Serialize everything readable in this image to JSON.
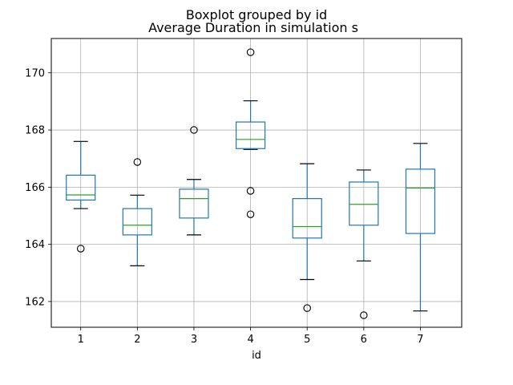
{
  "chart_data": {
    "type": "boxplot",
    "suptitle": "Boxplot grouped by id",
    "title": "Average Duration in simulation s",
    "xlabel": "id",
    "ylabel": "",
    "categories": [
      "1",
      "2",
      "3",
      "4",
      "5",
      "6",
      "7"
    ],
    "ylim": [
      161.1,
      171.2
    ],
    "yticks": [
      162,
      164,
      166,
      168,
      170
    ],
    "grid": true,
    "colors": {
      "box": "#1f77b4",
      "median": "#2ca02c",
      "whisker_cap": "#000000",
      "flier": "#000000",
      "grid": "#b0b0b0"
    },
    "boxes": [
      {
        "label": "1",
        "whislo": 165.25,
        "q1": 165.55,
        "med": 165.73,
        "q3": 166.42,
        "whishi": 167.6,
        "fliers": [
          163.85
        ]
      },
      {
        "label": "2",
        "whislo": 163.25,
        "q1": 164.33,
        "med": 164.67,
        "q3": 165.25,
        "whishi": 165.72,
        "fliers": [
          166.88
        ]
      },
      {
        "label": "3",
        "whislo": 164.33,
        "q1": 164.92,
        "med": 165.6,
        "q3": 165.93,
        "whishi": 166.27,
        "fliers": [
          168.0
        ]
      },
      {
        "label": "4",
        "whislo": 167.32,
        "q1": 167.35,
        "med": 167.67,
        "q3": 168.28,
        "whishi": 169.02,
        "fliers": [
          170.72,
          165.87,
          165.05
        ]
      },
      {
        "label": "5",
        "whislo": 162.77,
        "q1": 164.22,
        "med": 164.62,
        "q3": 165.6,
        "whishi": 166.82,
        "fliers": [
          161.77
        ]
      },
      {
        "label": "6",
        "whislo": 163.42,
        "q1": 164.67,
        "med": 165.4,
        "q3": 166.18,
        "whishi": 166.6,
        "fliers": [
          161.52
        ]
      },
      {
        "label": "7",
        "whislo": 161.67,
        "q1": 164.38,
        "med": 165.97,
        "q3": 166.63,
        "whishi": 167.53,
        "fliers": []
      }
    ]
  }
}
